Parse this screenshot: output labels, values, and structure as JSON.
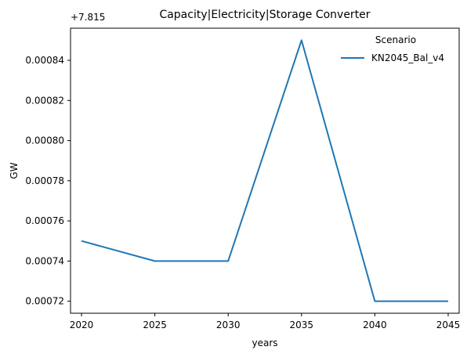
{
  "chart_data": {
    "type": "line",
    "title": "Capacity|Electricity|Storage Converter",
    "xlabel": "years",
    "ylabel": "GW",
    "offset_label": "+7.815",
    "x": [
      2020,
      2025,
      2030,
      2035,
      2040,
      2045
    ],
    "x_ticks": [
      "2020",
      "2025",
      "2030",
      "2035",
      "2040",
      "2045"
    ],
    "xlim": [
      2019.25,
      2045.75
    ],
    "y_ticks": [
      "0.00072",
      "0.00074",
      "0.00076",
      "0.00078",
      "0.00080",
      "0.00082",
      "0.00084"
    ],
    "y_tick_values": [
      0.00072,
      0.00074,
      0.00076,
      0.00078,
      0.0008,
      0.00082,
      0.00084
    ],
    "ylim": [
      0.000714,
      0.000856
    ],
    "grid": false,
    "legend": {
      "title": "Scenario",
      "placement": "top-right"
    },
    "series": [
      {
        "name": "KN2045_Bal_v4",
        "color": "#1f77b4",
        "values": [
          0.00075,
          0.00074,
          0.00074,
          0.00085,
          0.00072,
          0.00072
        ]
      }
    ]
  }
}
